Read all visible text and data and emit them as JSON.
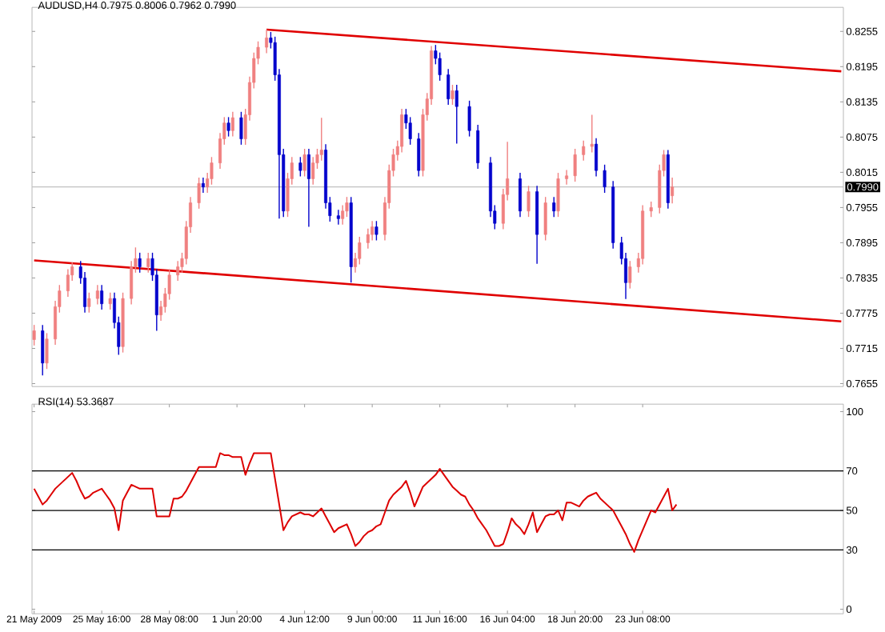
{
  "chart_data": [
    {
      "type": "candlestick",
      "title": "AUDUSD,H4  0.7975 0.8006 0.7962 0.7990",
      "categories": [
        null,
        null,
        null,
        null,
        null,
        null,
        null,
        null,
        null,
        null,
        null,
        null,
        null,
        null,
        null,
        null,
        null,
        null,
        null,
        null,
        null,
        null,
        null,
        null,
        null,
        null,
        null,
        null,
        null,
        null,
        null,
        null,
        null,
        null,
        null,
        null,
        null,
        null,
        null,
        null,
        null,
        null,
        null,
        null,
        null,
        null,
        null,
        null,
        null,
        null,
        null,
        null,
        null,
        null,
        null,
        null,
        null,
        null,
        null,
        null,
        null,
        null,
        null,
        null,
        null,
        null,
        null,
        null,
        null,
        null,
        null,
        null,
        null,
        null,
        null,
        null,
        null,
        null,
        null,
        null,
        null,
        null,
        null,
        null,
        null,
        null,
        null,
        null,
        null,
        null,
        null,
        null,
        null,
        null,
        null,
        null,
        null,
        null,
        null,
        null,
        null,
        null,
        null,
        null,
        null,
        null,
        null,
        null,
        null,
        null,
        null,
        null,
        null,
        null,
        null,
        null,
        null,
        null,
        null,
        null,
        null,
        null,
        null,
        null,
        null,
        null,
        null,
        null,
        null,
        null,
        null,
        null,
        null,
        null,
        null,
        null,
        null,
        null,
        null,
        null,
        null,
        null,
        null,
        null,
        null,
        null,
        null,
        null,
        null,
        null,
        null,
        null,
        null,
        null,
        null,
        null,
        null,
        null,
        null,
        null,
        null,
        null,
        null,
        null,
        null,
        null,
        null,
        null,
        null,
        null,
        null,
        null,
        null,
        null,
        null,
        null,
        null,
        null,
        null,
        null,
        null,
        null,
        null,
        null,
        null,
        null,
        null,
        null,
        null,
        null,
        null,
        null
      ],
      "ohlc": [
        [
          0.773,
          0.7755,
          0.772,
          0.7745
        ],
        null,
        [
          0.7745,
          0.7755,
          0.7669,
          0.769
        ],
        [
          0.769,
          0.7741,
          0.768,
          0.7731
        ],
        null,
        [
          0.7731,
          0.7796,
          0.7721,
          0.7786
        ],
        [
          0.7786,
          0.7823,
          0.7776,
          0.7813
        ],
        null,
        [
          0.7813,
          0.785,
          0.7803,
          0.784
        ],
        [
          0.784,
          0.7862,
          0.783,
          0.7854
        ],
        null,
        [
          0.7854,
          0.7864,
          0.7825,
          0.7835
        ],
        [
          0.7835,
          0.7845,
          0.7776,
          0.7786
        ],
        [
          0.7786,
          0.781,
          0.7776,
          0.78
        ],
        null,
        [
          0.78,
          0.7823,
          0.779,
          0.7813
        ],
        [
          0.7813,
          0.7823,
          0.7781,
          0.7791
        ],
        null,
        [
          0.7791,
          0.781,
          0.7781,
          0.78
        ],
        [
          0.78,
          0.781,
          0.7749,
          0.7759
        ],
        [
          0.7759,
          0.7769,
          0.7704,
          0.7718
        ],
        [
          0.7718,
          0.781,
          0.7708,
          0.78
        ],
        null,
        [
          0.78,
          0.7864,
          0.779,
          0.7854
        ],
        [
          0.7854,
          0.7887,
          0.7844,
          0.7868
        ],
        [
          0.7868,
          0.7878,
          0.7844,
          0.7854
        ],
        null,
        [
          0.7854,
          0.7878,
          0.7844,
          0.7868
        ],
        [
          0.7868,
          0.7878,
          0.783,
          0.784
        ],
        [
          0.784,
          0.785,
          0.7745,
          0.7772
        ],
        [
          0.7772,
          0.7796,
          0.7762,
          0.7786
        ],
        [
          0.7786,
          0.7818,
          0.7776,
          0.7808
        ],
        [
          0.7808,
          0.785,
          0.7798,
          0.784
        ],
        null,
        [
          0.784,
          0.7864,
          0.783,
          0.7854
        ],
        [
          0.7854,
          0.7878,
          0.7844,
          0.7868
        ],
        [
          0.7868,
          0.7932,
          0.7858,
          0.7922
        ],
        [
          0.7922,
          0.7973,
          0.7912,
          0.7963
        ],
        null,
        [
          0.7963,
          0.8006,
          0.7953,
          0.7996
        ],
        [
          0.7996,
          0.8006,
          0.798,
          0.799
        ],
        [
          0.799,
          0.8014,
          0.798,
          0.8004
        ],
        [
          0.8004,
          0.8041,
          0.7994,
          0.8031
        ],
        null,
        [
          0.8031,
          0.8082,
          0.8021,
          0.8072
        ],
        [
          0.8072,
          0.8109,
          0.8062,
          0.8099
        ],
        [
          0.8099,
          0.8109,
          0.8076,
          0.8086
        ],
        [
          0.8086,
          0.8118,
          0.8076,
          0.8108
        ],
        null,
        [
          0.8108,
          0.8118,
          0.8062,
          0.8072
        ],
        [
          0.8072,
          0.8123,
          0.8062,
          0.8113
        ],
        [
          0.8113,
          0.8178,
          0.8103,
          0.8168
        ],
        [
          0.8168,
          0.8219,
          0.8158,
          0.8209
        ],
        [
          0.8209,
          0.8238,
          0.8199,
          0.8228
        ],
        null,
        [
          0.8228,
          0.8258,
          0.8218,
          0.8244
        ],
        [
          0.8244,
          0.8254,
          0.8226,
          0.8236
        ],
        [
          0.8236,
          0.8246,
          0.8171,
          0.8181
        ],
        [
          0.8181,
          0.8191,
          0.7936,
          0.8045
        ],
        [
          0.8045,
          0.8055,
          0.7939,
          0.7949
        ],
        [
          0.7949,
          0.8014,
          0.7939,
          0.8004
        ],
        [
          0.8004,
          0.8041,
          0.7994,
          0.8031
        ],
        null,
        [
          0.8031,
          0.8041,
          0.8008,
          0.8018
        ],
        [
          0.8018,
          0.8055,
          0.8008,
          0.8045
        ],
        [
          0.8045,
          0.8055,
          0.7922,
          0.8004
        ],
        [
          0.8004,
          0.8041,
          0.7994,
          0.8031
        ],
        [
          0.8031,
          0.8055,
          0.8021,
          0.8045
        ],
        [
          0.8045,
          0.8108,
          0.8035,
          0.8053
        ],
        [
          0.8053,
          0.8063,
          0.7953,
          0.7963
        ],
        [
          0.7963,
          0.7973,
          0.7931,
          0.7941
        ],
        null,
        [
          0.7941,
          0.7951,
          0.7926,
          0.7936
        ],
        [
          0.7936,
          0.7959,
          0.7926,
          0.7949
        ],
        [
          0.7949,
          0.7973,
          0.7939,
          0.7963
        ],
        [
          0.7963,
          0.7973,
          0.7827,
          0.7854
        ],
        [
          0.7854,
          0.7878,
          0.7844,
          0.7868
        ],
        [
          0.7868,
          0.7905,
          0.7858,
          0.7895
        ],
        null,
        [
          0.7895,
          0.7919,
          0.7885,
          0.7909
        ],
        [
          0.7909,
          0.7932,
          0.7899,
          0.7922
        ],
        [
          0.7922,
          0.7932,
          0.7899,
          0.7909
        ],
        null,
        [
          0.7909,
          0.7973,
          0.7899,
          0.7963
        ],
        [
          0.7963,
          0.8028,
          0.7953,
          0.8018
        ],
        [
          0.8018,
          0.8055,
          0.8008,
          0.8045
        ],
        [
          0.8045,
          0.8069,
          0.8035,
          0.8059
        ],
        [
          0.8059,
          0.8123,
          0.8049,
          0.8113
        ],
        [
          0.8113,
          0.8123,
          0.8089,
          0.8099
        ],
        [
          0.8099,
          0.8109,
          0.8062,
          0.8072
        ],
        null,
        [
          0.8072,
          0.8082,
          0.8008,
          0.8018
        ],
        [
          0.8018,
          0.8123,
          0.8008,
          0.8113
        ],
        [
          0.8113,
          0.815,
          0.8103,
          0.814
        ],
        [
          0.814,
          0.823,
          0.813,
          0.8222
        ],
        [
          0.8222,
          0.8232,
          0.8199,
          0.8209
        ],
        [
          0.8209,
          0.8219,
          0.8171,
          0.8181
        ],
        null,
        [
          0.8181,
          0.8191,
          0.813,
          0.814
        ],
        [
          0.814,
          0.8164,
          0.813,
          0.8154
        ],
        [
          0.8154,
          0.8164,
          0.8064,
          0.8127
        ],
        null,
        null,
        [
          0.8127,
          0.8137,
          0.8076,
          0.8086
        ],
        null,
        [
          0.8086,
          0.8096,
          0.8021,
          0.8031
        ],
        null,
        null,
        [
          0.8031,
          0.8041,
          0.7939,
          0.7949
        ],
        [
          0.7949,
          0.7959,
          0.7918,
          0.7928
        ],
        null,
        [
          0.7928,
          0.7987,
          0.7918,
          0.7977
        ],
        [
          0.7977,
          0.8067,
          0.7967,
          0.8004
        ],
        null,
        null,
        [
          0.8004,
          0.8014,
          0.7939,
          0.7949
        ],
        null,
        [
          0.7949,
          0.7992,
          0.7939,
          0.7982
        ],
        null,
        [
          0.7982,
          0.7992,
          0.7859,
          0.7909
        ],
        null,
        [
          0.7909,
          0.7973,
          0.7899,
          0.7963
        ],
        null,
        [
          0.7963,
          0.7973,
          0.7939,
          0.7949
        ],
        [
          0.7949,
          0.8014,
          0.7939,
          0.8004
        ],
        null,
        [
          0.8004,
          0.8019,
          0.7994,
          0.8009
        ],
        null,
        [
          0.8009,
          0.8055,
          0.7999,
          0.8045
        ],
        null,
        [
          0.8045,
          0.8069,
          0.8035,
          0.8059
        ],
        null,
        [
          0.8059,
          0.8113,
          0.8049,
          0.8063
        ],
        [
          0.8063,
          0.8073,
          0.8008,
          0.8018
        ],
        null,
        [
          0.8018,
          0.8028,
          0.798,
          0.799
        ],
        null,
        [
          0.799,
          0.8,
          0.7885,
          0.7895
        ],
        null,
        [
          0.7895,
          0.7905,
          0.7858,
          0.7868
        ],
        [
          0.7868,
          0.7878,
          0.7799,
          0.7827
        ],
        [
          0.7827,
          0.7864,
          0.7817,
          0.7854
        ],
        null,
        [
          0.7854,
          0.7878,
          0.7844,
          0.7868
        ],
        [
          0.7868,
          0.7959,
          0.7858,
          0.7949
        ],
        null,
        [
          0.7949,
          0.7965,
          0.7939,
          0.7955
        ],
        null,
        [
          0.7955,
          0.8028,
          0.7945,
          0.8018
        ],
        [
          0.8018,
          0.8053,
          0.8008,
          0.8045
        ],
        [
          0.8045,
          0.8053,
          0.7953,
          0.7963
        ],
        [
          0.7975,
          0.8006,
          0.7962,
          0.799
        ],
        null,
        null,
        null,
        null,
        null,
        null,
        null,
        null,
        null,
        null,
        null,
        null,
        null,
        null,
        null,
        null,
        null,
        null,
        null,
        null,
        null,
        null,
        null,
        null,
        null,
        null,
        null,
        null,
        null,
        null,
        null,
        null,
        null,
        null,
        null,
        null,
        null,
        null,
        null,
        null
      ],
      "colors": [
        "#f08080",
        null,
        "#0000cc",
        "#f08080",
        null,
        "#f08080",
        "#f08080",
        null,
        "#f08080",
        "#f08080",
        null,
        "#0000cc",
        "#0000cc",
        "#f08080",
        null,
        "#f08080",
        "#0000cc",
        null,
        "#f08080",
        "#0000cc",
        "#0000cc",
        "#f08080",
        null,
        "#f08080",
        "#f08080",
        "#0000cc",
        null,
        "#f08080",
        "#0000cc",
        "#0000cc",
        "#f08080",
        "#f08080",
        "#f08080",
        null,
        "#f08080",
        "#f08080",
        "#f08080",
        "#f08080",
        null,
        "#f08080",
        "#0000cc",
        "#f08080",
        "#f08080",
        null,
        "#f08080",
        "#f08080",
        "#0000cc",
        "#f08080",
        null,
        "#0000cc",
        "#f08080",
        "#f08080",
        "#f08080",
        "#f08080",
        null,
        "#f08080",
        "#0000cc",
        "#0000cc",
        "#0000cc",
        "#0000cc",
        "#f08080",
        "#f08080",
        null,
        "#0000cc",
        "#f08080",
        "#0000cc",
        "#f08080",
        "#f08080",
        "#f08080",
        "#0000cc",
        "#0000cc",
        null,
        "#0000cc",
        "#f08080",
        "#f08080",
        "#0000cc",
        "#f08080",
        "#f08080",
        null,
        "#f08080",
        "#f08080",
        "#0000cc",
        null,
        "#f08080",
        "#f08080",
        "#f08080",
        "#f08080",
        "#f08080",
        "#0000cc",
        "#0000cc",
        null,
        "#0000cc",
        "#f08080",
        "#f08080",
        "#f08080",
        "#0000cc",
        "#0000cc",
        null,
        "#0000cc",
        "#f08080",
        "#0000cc",
        null,
        null,
        "#0000cc",
        null,
        "#0000cc",
        null,
        null,
        "#0000cc",
        "#0000cc",
        null,
        "#f08080",
        "#f08080",
        null,
        null,
        "#0000cc",
        null,
        "#f08080",
        null,
        "#0000cc",
        null,
        "#f08080",
        null,
        "#0000cc",
        "#f08080",
        null,
        "#f08080",
        null,
        "#f08080",
        null,
        "#f08080",
        null,
        "#f08080",
        "#0000cc",
        null,
        "#0000cc",
        null,
        "#0000cc",
        null,
        "#0000cc",
        "#0000cc",
        "#f08080",
        null,
        "#f08080",
        "#f08080",
        null,
        "#f08080",
        null,
        "#f08080",
        "#f08080",
        "#0000cc",
        "#f08080",
        null,
        null,
        null,
        null,
        null,
        null,
        null,
        null,
        null,
        null,
        null,
        null,
        null,
        null,
        null,
        null,
        null,
        null,
        null,
        null,
        null,
        null,
        null,
        null,
        null,
        null,
        null,
        null,
        null,
        null,
        null,
        null,
        null,
        null,
        null,
        null,
        null,
        null,
        null,
        null
      ],
      "series": [
        {
          "type": "line",
          "color": "#e00000",
          "values": [
            null,
            null,
            null,
            null,
            null,
            null,
            null,
            null,
            null,
            null,
            null,
            null,
            null,
            null,
            null,
            null,
            null,
            null,
            null,
            null,
            null,
            null,
            null,
            null,
            null,
            null,
            null,
            null,
            null,
            null,
            null,
            null,
            null,
            null,
            null,
            null,
            null,
            null,
            null,
            null,
            null,
            null,
            null,
            null,
            null,
            null,
            null,
            null,
            null,
            null,
            null,
            null,
            null,
            null,
            null,
            0.8258,
            null,
            null,
            null,
            null,
            null,
            null,
            null,
            null,
            null,
            null,
            null,
            null,
            null,
            null,
            null,
            null,
            null,
            null,
            null,
            null,
            null,
            null,
            null,
            null,
            null,
            null,
            null,
            null,
            null,
            null,
            null,
            null,
            null,
            null,
            null,
            null,
            null,
            null,
            null,
            null,
            null,
            null,
            null,
            null,
            null,
            null,
            null,
            null,
            null,
            null,
            null,
            null,
            null,
            null,
            null,
            null,
            null,
            null,
            null,
            null,
            null,
            null,
            null,
            null,
            null,
            null,
            null,
            null,
            null,
            null,
            null,
            null,
            null,
            null,
            null,
            null,
            null,
            null,
            null,
            null,
            null,
            null,
            null,
            null,
            null,
            null,
            null,
            null,
            null,
            null,
            null,
            null,
            null,
            null,
            null,
            null,
            null,
            null,
            null,
            null,
            null,
            null,
            null,
            null,
            null,
            null,
            null,
            null,
            null,
            null,
            null,
            null,
            null,
            null,
            null,
            null,
            null,
            null,
            null,
            null,
            null,
            null,
            null,
            null,
            null,
            null,
            null,
            null,
            null,
            null,
            null,
            null,
            null,
            null,
            null,
            0.8187
          ]
        },
        {
          "type": "line",
          "color": "#e00000",
          "values": [
            0.7865,
            null,
            null,
            null,
            null,
            null,
            null,
            null,
            null,
            null,
            null,
            null,
            null,
            null,
            null,
            null,
            null,
            null,
            null,
            null,
            null,
            null,
            null,
            null,
            null,
            null,
            null,
            null,
            null,
            null,
            null,
            null,
            null,
            null,
            null,
            null,
            null,
            null,
            null,
            null,
            null,
            null,
            null,
            null,
            null,
            null,
            null,
            null,
            null,
            null,
            null,
            null,
            null,
            null,
            null,
            null,
            null,
            null,
            null,
            null,
            null,
            null,
            null,
            null,
            null,
            null,
            null,
            null,
            null,
            null,
            null,
            null,
            null,
            null,
            null,
            null,
            null,
            null,
            null,
            null,
            null,
            null,
            null,
            null,
            null,
            null,
            null,
            null,
            null,
            null,
            null,
            null,
            null,
            null,
            null,
            null,
            null,
            null,
            null,
            null,
            null,
            null,
            null,
            null,
            null,
            null,
            null,
            null,
            null,
            null,
            null,
            null,
            null,
            null,
            null,
            null,
            null,
            null,
            null,
            null,
            null,
            null,
            null,
            null,
            null,
            null,
            null,
            null,
            null,
            null,
            null,
            null,
            null,
            null,
            null,
            null,
            null,
            null,
            null,
            null,
            null,
            null,
            null,
            null,
            null,
            null,
            null,
            null,
            null,
            null,
            null,
            null,
            null,
            null,
            null,
            null,
            null,
            null,
            null,
            null,
            null,
            null,
            null,
            null,
            null,
            null,
            null,
            null,
            null,
            null,
            null,
            null,
            null,
            null,
            null,
            null,
            null,
            null,
            null,
            null,
            null,
            null,
            null,
            null,
            null,
            null,
            null,
            null,
            null,
            null,
            null,
            0.7761
          ]
        }
      ],
      "ylim": [
        0.765,
        0.8296
      ],
      "yticks": [
        0.8255,
        0.8195,
        0.8135,
        0.8075,
        0.8015,
        0.7955,
        0.7895,
        0.7835,
        0.7775,
        0.7715,
        0.7655
      ],
      "ref_lines": [
        {
          "axis": "y",
          "value": 0.799,
          "label": "0.7990",
          "color": "#c0c0c0"
        }
      ]
    },
    {
      "type": "line",
      "title": "RSI(14) 53.3687",
      "categories": [
        "21 May 2009",
        null,
        null,
        null,
        null,
        null,
        null,
        null,
        null,
        null,
        null,
        null,
        null,
        null,
        null,
        null,
        "25 May 16:00",
        null,
        null,
        null,
        null,
        null,
        null,
        null,
        null,
        null,
        null,
        null,
        null,
        null,
        null,
        null,
        "28 May 08:00",
        null,
        null,
        null,
        null,
        null,
        null,
        null,
        null,
        null,
        null,
        null,
        null,
        null,
        null,
        null,
        "1 Jun 20:00",
        null,
        null,
        null,
        null,
        null,
        null,
        null,
        null,
        null,
        null,
        null,
        null,
        null,
        null,
        null,
        "4 Jun 12:00",
        null,
        null,
        null,
        null,
        null,
        null,
        null,
        null,
        null,
        null,
        null,
        null,
        null,
        null,
        null,
        "9 Jun 00:00",
        null,
        null,
        null,
        null,
        null,
        null,
        null,
        null,
        null,
        null,
        null,
        null,
        null,
        null,
        null,
        "11 Jun 16:00",
        null,
        null,
        null,
        null,
        null,
        null,
        null,
        null,
        null,
        null,
        null,
        null,
        null,
        null,
        null,
        "16 Jun 04:00",
        null,
        null,
        null,
        null,
        null,
        null,
        null,
        null,
        null,
        null,
        null,
        null,
        null,
        null,
        null,
        "18 Jun 20:00",
        null,
        null,
        null,
        null,
        null,
        null,
        null,
        null,
        null,
        null,
        null,
        null,
        null,
        null,
        null,
        "23 Jun 08:00",
        null,
        null,
        null,
        null,
        null,
        null,
        null,
        null,
        null,
        null,
        null,
        null,
        null,
        null,
        null,
        null,
        null,
        null,
        null,
        null,
        null,
        null,
        null,
        null,
        null,
        null,
        null,
        null,
        null,
        null,
        null,
        null,
        null,
        null,
        null,
        null,
        null,
        null,
        null,
        null,
        null,
        null,
        null,
        null,
        null,
        null,
        null
      ],
      "values": [
        61,
        57,
        53,
        55,
        58,
        61,
        63,
        65,
        67,
        69,
        65,
        60,
        56,
        57,
        59,
        60,
        61,
        58,
        55,
        51,
        40,
        55,
        59,
        63,
        62,
        61,
        61,
        61,
        61,
        47,
        47,
        47,
        47,
        56,
        56,
        57,
        60,
        64,
        68,
        72,
        72,
        72,
        72,
        72,
        79,
        78,
        78,
        77,
        77,
        77,
        68,
        74,
        79,
        79,
        79,
        79,
        79,
        66,
        53,
        40,
        44,
        47,
        48,
        49,
        48,
        48,
        47,
        49,
        51,
        47,
        43,
        39,
        41,
        42,
        43,
        38,
        32,
        34,
        37,
        39,
        40,
        42,
        43,
        49,
        55,
        58,
        60,
        62,
        65,
        59,
        52,
        57,
        62,
        64,
        66,
        68,
        71,
        68,
        65,
        62,
        60,
        58,
        57,
        53,
        50,
        46,
        43,
        40,
        36,
        32,
        32,
        33,
        39,
        46,
        43,
        41,
        38,
        43,
        49,
        39,
        43,
        47,
        48,
        48,
        50,
        45,
        54,
        54,
        53,
        52,
        55,
        57,
        58,
        59,
        56,
        54,
        52,
        50,
        46,
        42,
        38,
        33,
        29,
        35,
        40,
        45,
        50,
        49,
        53,
        57,
        61,
        50,
        53,
        null,
        null,
        null,
        null,
        null,
        null,
        null,
        null,
        null,
        null,
        null,
        null,
        null,
        null,
        null,
        null,
        null,
        null,
        null,
        null,
        null,
        null,
        null,
        null,
        null,
        null,
        null,
        null,
        null,
        null,
        null,
        null,
        null,
        null,
        null,
        null,
        null,
        null,
        null
      ],
      "color": "#dd0000",
      "ylim": [
        -2.3,
        103.8
      ],
      "yticks": [
        0,
        30,
        50,
        70,
        100
      ],
      "ref_lines": [
        {
          "axis": "y",
          "value": 30,
          "color": "#000000"
        },
        {
          "axis": "y",
          "value": 50,
          "color": "#000000"
        },
        {
          "axis": "y",
          "value": 70,
          "color": "#000000"
        }
      ]
    }
  ]
}
